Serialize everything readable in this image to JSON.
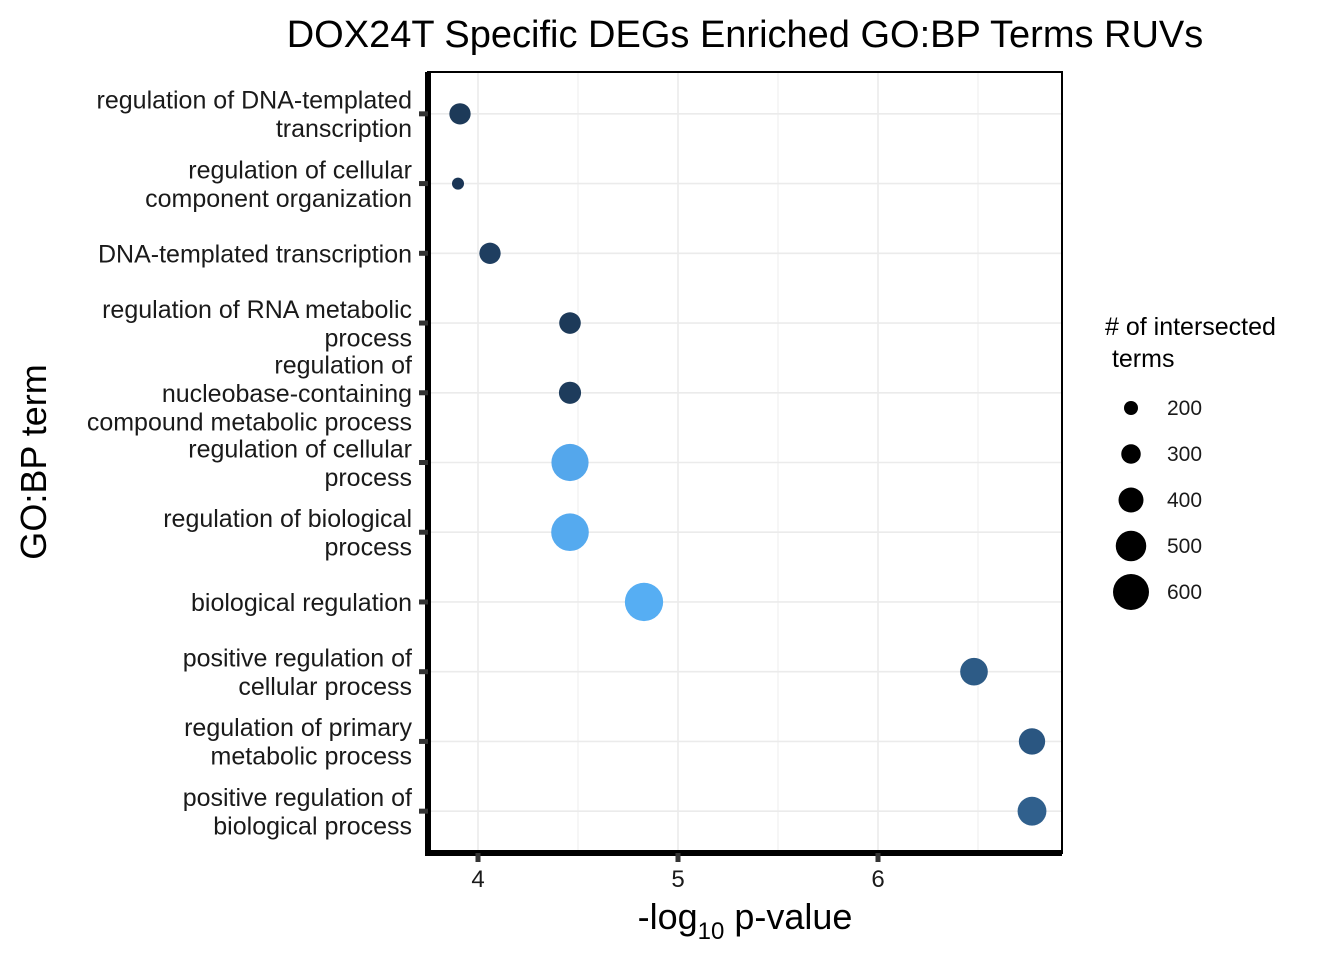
{
  "chart_data": {
    "type": "scatter",
    "title": "DOX24T Specific DEGs Enriched GO:BP Terms RUVs",
    "xlabel": {
      "prefix": "-log",
      "subscript": "10",
      "suffix": " p-value"
    },
    "ylabel": "GO:BP term",
    "xlim": [
      3.75,
      6.92
    ],
    "xticks": [
      4,
      5,
      6
    ],
    "grid": true,
    "size_legend": {
      "title_lines": [
        "# of intersected",
        " terms"
      ],
      "values": [
        200,
        300,
        400,
        500,
        600
      ],
      "labels": [
        "200",
        "300",
        "400",
        "500",
        "600"
      ]
    },
    "color_scale": {
      "low": "#132B43",
      "high": "#56B1F7"
    },
    "points": [
      {
        "term_lines": [
          "regulation of DNA-templated",
          "transcription"
        ],
        "x": 3.91,
        "size": 230,
        "color": "#1d3a59"
      },
      {
        "term_lines": [
          "regulation of cellular",
          "component organization"
        ],
        "x": 3.9,
        "size": 120,
        "color": "#1a3555"
      },
      {
        "term_lines": [
          "DNA-templated transcription"
        ],
        "x": 4.06,
        "size": 230,
        "color": "#1f3e60"
      },
      {
        "term_lines": [
          "regulation of RNA metabolic",
          "process"
        ],
        "x": 4.46,
        "size": 235,
        "color": "#1d3a59"
      },
      {
        "term_lines": [
          "regulation of",
          "nucleobase-containing",
          "compound metabolic process"
        ],
        "x": 4.46,
        "size": 245,
        "color": "#1e3c5c"
      },
      {
        "term_lines": [
          "regulation of cellular",
          "process"
        ],
        "x": 4.46,
        "size": 640,
        "color": "#54a7ec"
      },
      {
        "term_lines": [
          "regulation of biological",
          "process"
        ],
        "x": 4.46,
        "size": 655,
        "color": "#55aaef"
      },
      {
        "term_lines": [
          "biological regulation"
        ],
        "x": 4.83,
        "size": 680,
        "color": "#56aef3"
      },
      {
        "term_lines": [
          "positive regulation of",
          "cellular process"
        ],
        "x": 6.48,
        "size": 360,
        "color": "#2d5b86"
      },
      {
        "term_lines": [
          "regulation of primary",
          "metabolic process"
        ],
        "x": 6.77,
        "size": 330,
        "color": "#2a5681"
      },
      {
        "term_lines": [
          "positive regulation of",
          "biological process"
        ],
        "x": 6.77,
        "size": 390,
        "color": "#30608d"
      }
    ]
  }
}
